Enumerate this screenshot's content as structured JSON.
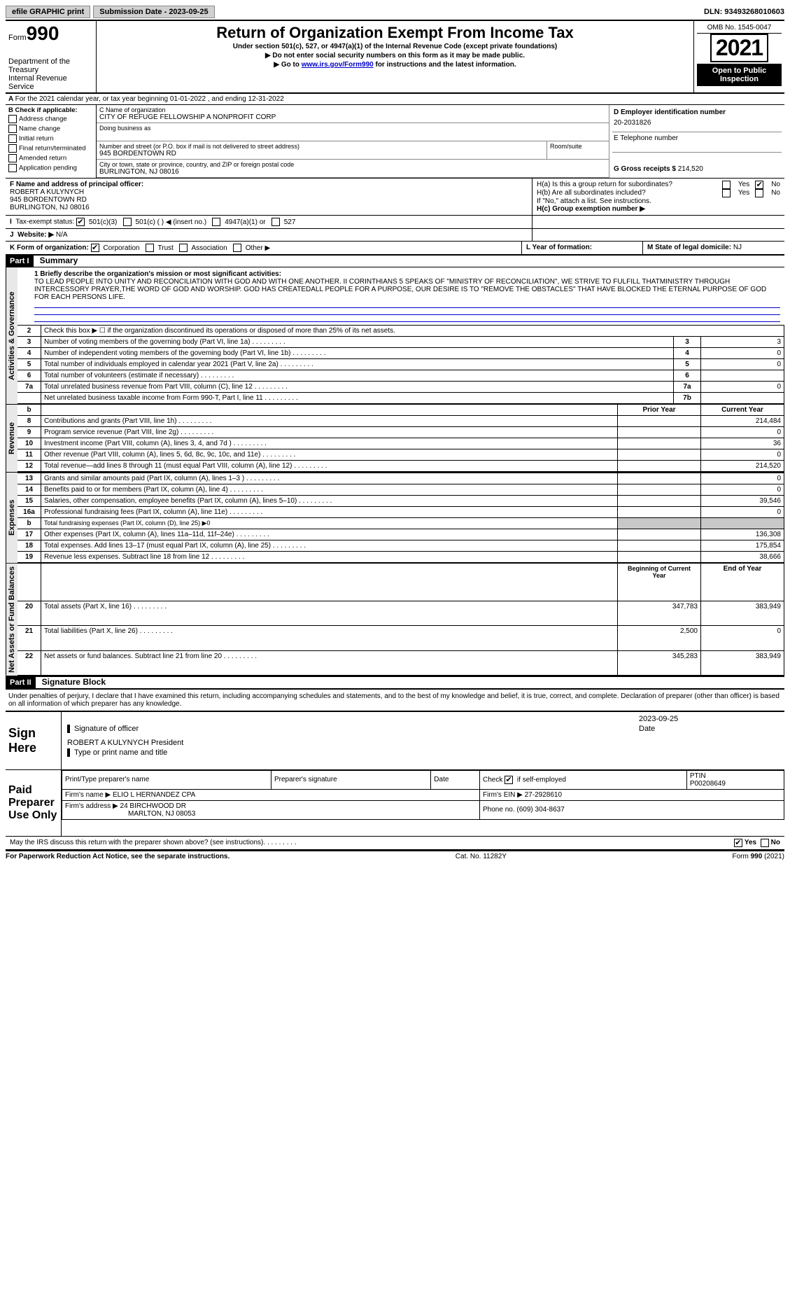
{
  "topbar": {
    "efile": "efile GRAPHIC print",
    "submission": "Submission Date - 2023-09-25",
    "dln": "DLN: 93493268010603"
  },
  "header": {
    "form_prefix": "Form",
    "form_num": "990",
    "dept": "Department of the Treasury",
    "irs": "Internal Revenue Service",
    "title": "Return of Organization Exempt From Income Tax",
    "sub1": "Under section 501(c), 527, or 4947(a)(1) of the Internal Revenue Code (except private foundations)",
    "sub2": "▶ Do not enter social security numbers on this form as it may be made public.",
    "sub3_pre": "▶ Go to ",
    "sub3_link": "www.irs.gov/Form990",
    "sub3_post": " for instructions and the latest information.",
    "omb": "OMB No. 1545-0047",
    "year": "2021",
    "open": "Open to Public Inspection"
  },
  "a_line": "For the 2021 calendar year, or tax year beginning 01-01-2022    , and ending 12-31-2022",
  "b": {
    "hdr": "B Check if applicable:",
    "items": [
      "Address change",
      "Name change",
      "Initial return",
      "Final return/terminated",
      "Amended return",
      "Application pending"
    ]
  },
  "c": {
    "name_lbl": "C Name of organization",
    "name": "CITY OF REFUGE FELLOWSHIP A NONPROFIT CORP",
    "dba_lbl": "Doing business as",
    "addr_lbl": "Number and street (or P.O. box if mail is not delivered to street address)",
    "room_lbl": "Room/suite",
    "addr": "945 BORDENTOWN RD",
    "city_lbl": "City or town, state or province, country, and ZIP or foreign postal code",
    "city": "BURLINGTON, NJ  08016"
  },
  "d": {
    "lbl": "D Employer identification number",
    "val": "20-2031826"
  },
  "e": {
    "lbl": "E Telephone number"
  },
  "g": {
    "lbl": "G Gross receipts $",
    "val": "214,520"
  },
  "f": {
    "lbl": "F  Name and address of principal officer:",
    "name": "ROBERT A KULYNYCH",
    "addr": "945 BORDENTOWN RD",
    "city": "BURLINGTON, NJ  08016"
  },
  "h": {
    "a": "H(a)  Is this a group return for subordinates?",
    "yes": "Yes",
    "no": "No",
    "b": "H(b)  Are all subordinates included?",
    "note": "If \"No,\" attach a list. See instructions.",
    "c": "H(c)  Group exemption number ▶"
  },
  "i": {
    "lbl": "Tax-exempt status:",
    "opts": [
      "501(c)(3)",
      "501(c) (   ) ◀ (insert no.)",
      "4947(a)(1) or",
      "527"
    ]
  },
  "j": {
    "lbl": "Website: ▶",
    "val": "N/A"
  },
  "k": {
    "lbl": "K Form of organization:",
    "opts": [
      "Corporation",
      "Trust",
      "Association",
      "Other ▶"
    ]
  },
  "l": {
    "lbl": "L Year of formation:"
  },
  "m": {
    "lbl": "M State of legal domicile:",
    "val": "NJ"
  },
  "part1": {
    "hdr": "Part I",
    "title": "Summary"
  },
  "mission_lbl": "1  Briefly describe the organization's mission or most significant activities:",
  "mission": "TO LEAD PEOPLE INTO UNITY AND RECONCILIATION WITH GOD AND WITH ONE ANOTHER. II CORINTHIANS 5 SPEAKS OF \"MINISTRY OF RECONCILIATION\", WE STRIVE TO FULFILL THATMINISTRY THROUGH INTERCESSORY PRAYER,THE WORD OF GOD AND WORSHIP. GOD HAS CREATEDALL PEOPLE FOR A PURPOSE, OUR DESIRE IS TO \"REMOVE THE OBSTACLES\" THAT HAVE BLOCKED THE ETERNAL PURPOSE OF GOD FOR EACH PERSONS LIFE.",
  "summary_rows": [
    {
      "n": "2",
      "t": "Check this box ▶ ☐  if the organization discontinued its operations or disposed of more than 25% of its net assets."
    },
    {
      "n": "3",
      "t": "Number of voting members of the governing body (Part VI, line 1a)",
      "box": "3",
      "v": "3"
    },
    {
      "n": "4",
      "t": "Number of independent voting members of the governing body (Part VI, line 1b)",
      "box": "4",
      "v": "0"
    },
    {
      "n": "5",
      "t": "Total number of individuals employed in calendar year 2021 (Part V, line 2a)",
      "box": "5",
      "v": "0"
    },
    {
      "n": "6",
      "t": "Total number of volunteers (estimate if necessary)",
      "box": "6",
      "v": ""
    },
    {
      "n": "7a",
      "t": "Total unrelated business revenue from Part VIII, column (C), line 12",
      "box": "7a",
      "v": "0"
    },
    {
      "n": "",
      "t": "Net unrelated business taxable income from Form 990-T, Part I, line 11",
      "box": "7b",
      "v": ""
    }
  ],
  "rev_hdr": {
    "prior": "Prior Year",
    "curr": "Current Year"
  },
  "revenue": [
    {
      "n": "8",
      "t": "Contributions and grants (Part VIII, line 1h)",
      "p": "",
      "c": "214,484"
    },
    {
      "n": "9",
      "t": "Program service revenue (Part VIII, line 2g)",
      "p": "",
      "c": "0"
    },
    {
      "n": "10",
      "t": "Investment income (Part VIII, column (A), lines 3, 4, and 7d )",
      "p": "",
      "c": "36"
    },
    {
      "n": "11",
      "t": "Other revenue (Part VIII, column (A), lines 5, 6d, 8c, 9c, 10c, and 11e)",
      "p": "",
      "c": "0"
    },
    {
      "n": "12",
      "t": "Total revenue—add lines 8 through 11 (must equal Part VIII, column (A), line 12)",
      "p": "",
      "c": "214,520"
    }
  ],
  "expenses": [
    {
      "n": "13",
      "t": "Grants and similar amounts paid (Part IX, column (A), lines 1–3 )",
      "p": "",
      "c": "0"
    },
    {
      "n": "14",
      "t": "Benefits paid to or for members (Part IX, column (A), line 4)",
      "p": "",
      "c": "0"
    },
    {
      "n": "15",
      "t": "Salaries, other compensation, employee benefits (Part IX, column (A), lines 5–10)",
      "p": "",
      "c": "39,546"
    },
    {
      "n": "16a",
      "t": "Professional fundraising fees (Part IX, column (A), line 11e)",
      "p": "",
      "c": "0"
    },
    {
      "n": "b",
      "t": "Total fundraising expenses (Part IX, column (D), line 25) ▶0",
      "shaded": true
    },
    {
      "n": "17",
      "t": "Other expenses (Part IX, column (A), lines 11a–11d, 11f–24e)",
      "p": "",
      "c": "136,308"
    },
    {
      "n": "18",
      "t": "Total expenses. Add lines 13–17 (must equal Part IX, column (A), line 25)",
      "p": "",
      "c": "175,854"
    },
    {
      "n": "19",
      "t": "Revenue less expenses. Subtract line 18 from line 12",
      "p": "",
      "c": "38,666"
    }
  ],
  "net_hdr": {
    "beg": "Beginning of Current Year",
    "end": "End of Year"
  },
  "netassets": [
    {
      "n": "20",
      "t": "Total assets (Part X, line 16)",
      "p": "347,783",
      "c": "383,949"
    },
    {
      "n": "21",
      "t": "Total liabilities (Part X, line 26)",
      "p": "2,500",
      "c": "0"
    },
    {
      "n": "22",
      "t": "Net assets or fund balances. Subtract line 21 from line 20",
      "p": "345,283",
      "c": "383,949"
    }
  ],
  "part2": {
    "hdr": "Part II",
    "title": "Signature Block"
  },
  "sig_decl": "Under penalties of perjury, I declare that I have examined this return, including accompanying schedules and statements, and to the best of my knowledge and belief, it is true, correct, and complete. Declaration of preparer (other than officer) is based on all information of which preparer has any knowledge.",
  "sign": {
    "here": "Sign Here",
    "sig_ofc": "Signature of officer",
    "date": "Date",
    "date_val": "2023-09-25",
    "name": "ROBERT A KULYNYCH  President",
    "name_lbl": "Type or print name and title"
  },
  "prep": {
    "hdr": "Paid Preparer Use Only",
    "c1": "Print/Type preparer's name",
    "c2": "Preparer's signature",
    "c3": "Date",
    "c4": "Check ☑ if self-employed",
    "c5": "PTIN",
    "ptin": "P00208649",
    "firm_lbl": "Firm's name    ▶",
    "firm": "ELIO L HERNANDEZ CPA",
    "ein_lbl": "Firm's EIN ▶",
    "ein": "27-2928610",
    "addr_lbl": "Firm's address ▶",
    "addr1": "24 BIRCHWOOD DR",
    "addr2": "MARLTON, NJ  08053",
    "phone_lbl": "Phone no.",
    "phone": "(609) 304-8637"
  },
  "irs_discuss": "May the IRS discuss this return with the preparer shown above? (see instructions)",
  "footer": {
    "pra": "For Paperwork Reduction Act Notice, see the separate instructions.",
    "cat": "Cat. No. 11282Y",
    "form": "Form 990 (2021)"
  },
  "vert": {
    "act": "Activities & Governance",
    "rev": "Revenue",
    "exp": "Expenses",
    "net": "Net Assets or Fund Balances"
  }
}
